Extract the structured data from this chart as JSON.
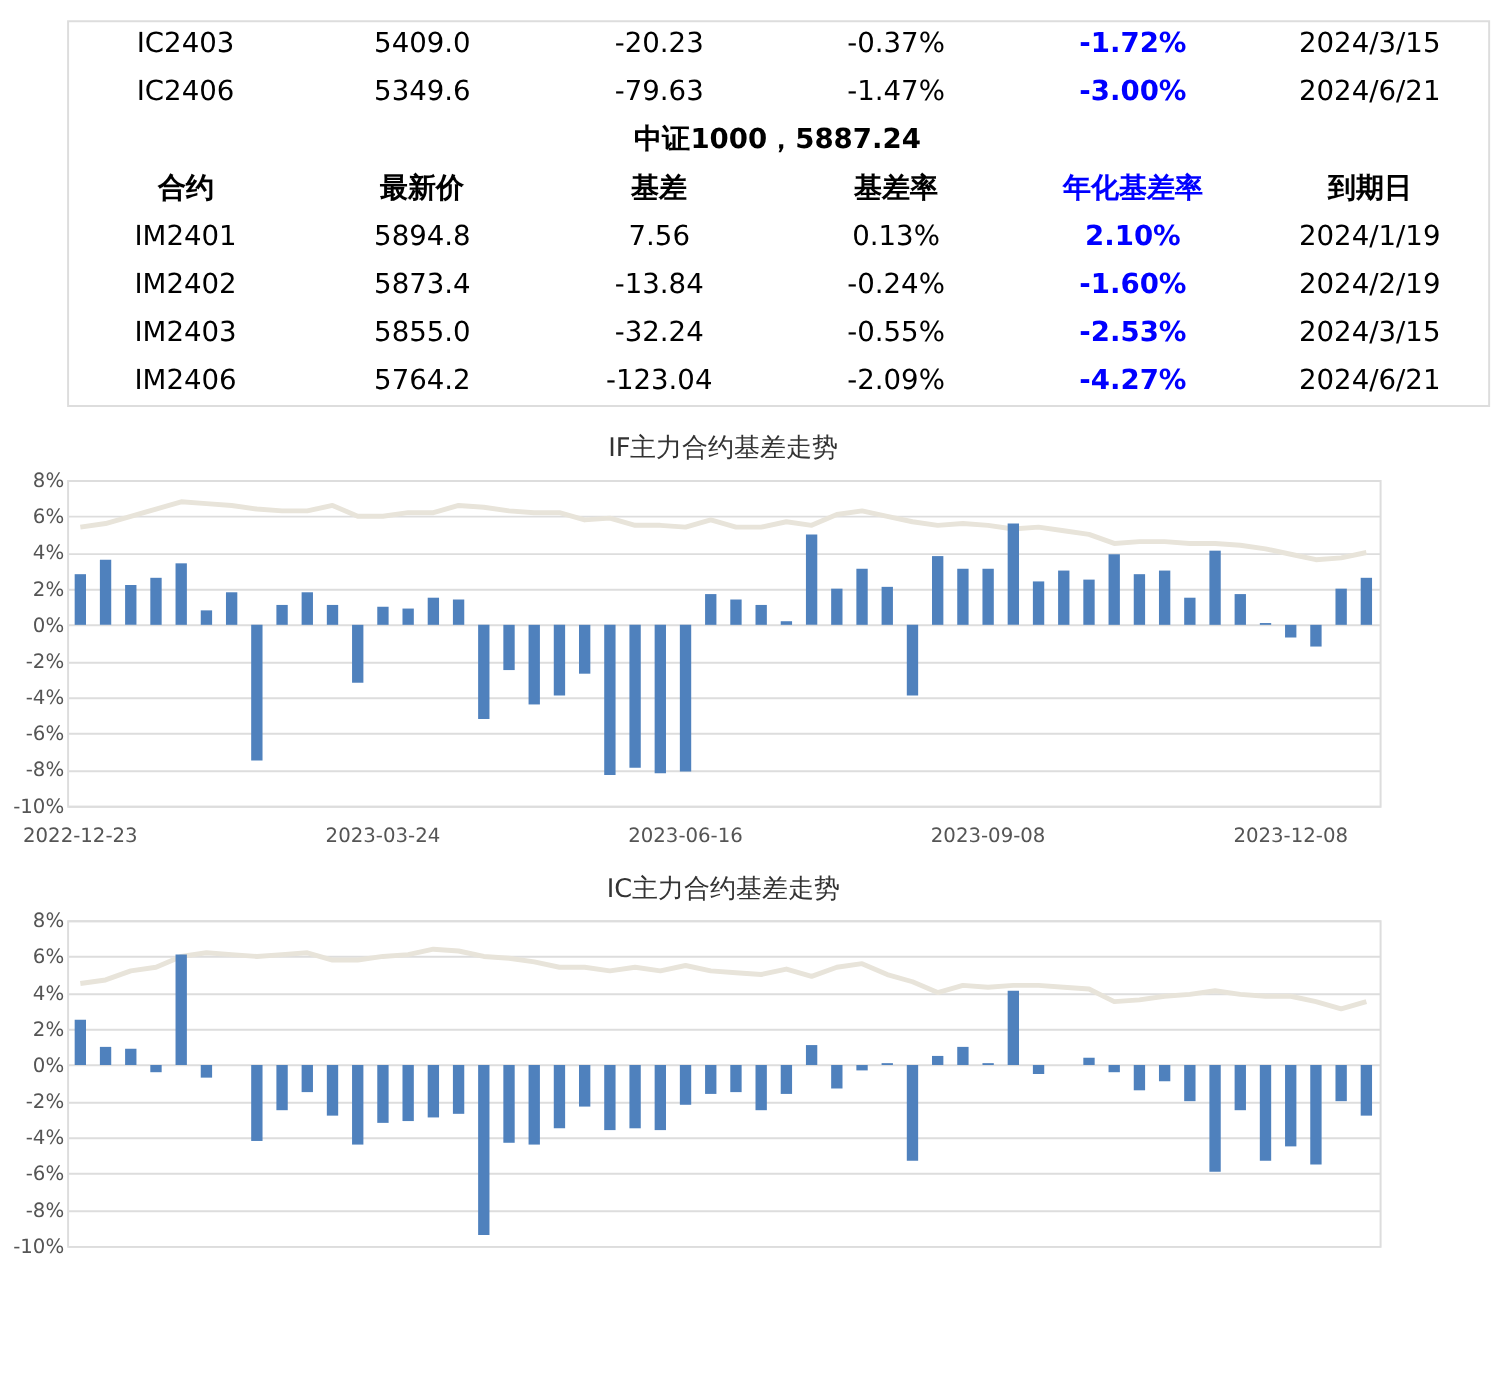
{
  "chart_data": [
    {
      "type": "other",
      "title": "中证1000，5887.24",
      "categories": [
        "合约",
        "最新价",
        "基差",
        "基差率",
        "年化基差率",
        "到期日"
      ],
      "colors": [
        "#000000",
        "#000000",
        "#000000",
        "#000000",
        "#0000ff",
        "#000000"
      ],
      "annotations": [
        "IC2403",
        "5409.0",
        "-20.23",
        "-0.37%",
        "-1.72%",
        "2024/3/15",
        "IC2406",
        "5349.6",
        "-79.63",
        "-1.47%",
        "-3.00%",
        "2024/6/21",
        "IM2401",
        "5894.8",
        "7.56",
        "0.13%",
        "2.10%",
        "2024/1/19",
        "IM2402",
        "5873.4",
        "-13.84",
        "-0.24%",
        "-1.60%",
        "2024/2/19",
        "IM2403",
        "5855.0",
        "-32.24",
        "-0.55%",
        "-2.53%",
        "2024/3/15",
        "IM2406",
        "5764.2",
        "-123.04",
        "-2.09%",
        "-4.27%",
        "2024/6/21"
      ]
    },
    {
      "type": "bar",
      "title": "IF主力合约基差走势",
      "grid": "y",
      "categories": [
        "2022-12-23",
        null,
        null,
        null,
        null,
        null,
        null,
        null,
        null,
        null,
        null,
        null,
        "2023-03-24",
        null,
        null,
        null,
        null,
        null,
        null,
        null,
        null,
        null,
        null,
        null,
        "2023-06-16",
        null,
        null,
        null,
        null,
        null,
        null,
        null,
        null,
        null,
        null,
        null,
        "2023-09-08",
        null,
        null,
        null,
        null,
        null,
        null,
        null,
        null,
        null,
        null,
        null,
        "2023-12-08",
        null,
        null,
        null
      ],
      "ylim": [
        -10,
        8
      ],
      "yticks": [
        {
          "value": -10,
          "label": "-10%"
        },
        {
          "value": -8,
          "label": "-8%"
        },
        {
          "value": -6,
          "label": "-6%"
        },
        {
          "value": -4,
          "label": "-4%"
        },
        {
          "value": -2,
          "label": "-2%"
        },
        {
          "value": 0,
          "label": "0%"
        },
        {
          "value": 2,
          "label": "2%"
        },
        {
          "value": 4,
          "label": "4%"
        },
        {
          "value": 6,
          "label": "6%"
        },
        {
          "value": 8,
          "label": "8%"
        }
      ],
      "series": [
        {
          "type": "line",
          "color": "#e8e4da",
          "values": [
            5.4,
            5.6,
            6.0,
            6.4,
            6.8,
            6.7,
            6.6,
            6.4,
            6.3,
            6.3,
            6.6,
            6.0,
            6.0,
            6.2,
            6.2,
            6.6,
            6.5,
            6.3,
            6.2,
            6.2,
            5.8,
            5.9,
            5.5,
            5.5,
            5.4,
            5.8,
            5.4,
            5.4,
            5.7,
            5.5,
            6.1,
            6.3,
            6.0,
            5.7,
            5.5,
            5.6,
            5.5,
            5.3,
            5.4,
            5.2,
            5.0,
            4.5,
            4.6,
            4.6,
            4.5,
            4.5,
            4.4,
            4.2,
            3.9,
            3.6,
            3.7,
            4.0
          ]
        },
        {
          "type": "bar",
          "color": "#4f81bd",
          "values": [
            2.8,
            3.6,
            2.2,
            2.6,
            3.4,
            0.8,
            1.8,
            -7.5,
            1.1,
            1.8,
            1.1,
            -3.2,
            1.0,
            0.9,
            1.5,
            1.4,
            -5.2,
            -2.5,
            -4.4,
            -3.9,
            -2.7,
            -8.3,
            -7.9,
            -8.2,
            -8.1,
            1.7,
            1.4,
            1.1,
            0.2,
            5.0,
            2.0,
            3.1,
            2.1,
            -3.9,
            3.8,
            3.1,
            3.1,
            5.6,
            2.4,
            3.0,
            2.5,
            3.9,
            2.8,
            3.0,
            1.5,
            4.1,
            1.7,
            0.1,
            -0.7,
            -1.2,
            2.0,
            2.6
          ]
        }
      ]
    },
    {
      "type": "bar",
      "title": "IC主力合约基差走势",
      "grid": "y",
      "tick_labels": "y",
      "categories": [
        null,
        null,
        null,
        null,
        null,
        null,
        null,
        null,
        null,
        null,
        null,
        null,
        null,
        null,
        null,
        null,
        null,
        null,
        null,
        null,
        null,
        null,
        null,
        null,
        null,
        null,
        null,
        null,
        null,
        null,
        null,
        null,
        null,
        null,
        null,
        null,
        null,
        null,
        null,
        null,
        null,
        null,
        null,
        null,
        null,
        null,
        null,
        null,
        null,
        null,
        null,
        null
      ],
      "ylim": [
        -10,
        8
      ],
      "yticks": [
        {
          "value": -10,
          "label": "-10%"
        },
        {
          "value": -8,
          "label": "-8%"
        },
        {
          "value": -6,
          "label": "-6%"
        },
        {
          "value": -4,
          "label": "-4%"
        },
        {
          "value": -2,
          "label": "-2%"
        },
        {
          "value": 0,
          "label": "0%"
        },
        {
          "value": 2,
          "label": "2%"
        },
        {
          "value": 4,
          "label": "4%"
        },
        {
          "value": 6,
          "label": "6%"
        },
        {
          "value": 8,
          "label": "8%"
        }
      ],
      "series": [
        {
          "type": "line",
          "color": "#e8e4da",
          "values": [
            4.5,
            4.7,
            5.2,
            5.4,
            6.0,
            6.2,
            6.1,
            6.0,
            6.1,
            6.2,
            5.8,
            5.8,
            6.0,
            6.1,
            6.4,
            6.3,
            6.0,
            5.9,
            5.7,
            5.4,
            5.4,
            5.2,
            5.4,
            5.2,
            5.5,
            5.2,
            5.1,
            5.0,
            5.3,
            4.9,
            5.4,
            5.6,
            5.0,
            4.6,
            4.0,
            4.4,
            4.3,
            4.4,
            4.4,
            4.3,
            4.2,
            3.5,
            3.6,
            3.8,
            3.9,
            4.1,
            3.9,
            3.8,
            3.8,
            3.5,
            3.1,
            3.5
          ]
        },
        {
          "type": "bar",
          "color": "#4f81bd",
          "values": [
            2.5,
            1.0,
            0.9,
            -0.4,
            6.1,
            -0.7,
            0,
            -4.2,
            -2.5,
            -1.5,
            -2.8,
            -4.4,
            -3.2,
            -3.1,
            -2.9,
            -2.7,
            -9.4,
            -4.3,
            -4.4,
            -3.5,
            -2.3,
            -3.6,
            -3.5,
            -3.6,
            -2.2,
            -1.6,
            -1.5,
            -2.5,
            -1.6,
            1.1,
            -1.3,
            -0.3,
            0.1,
            -5.3,
            0.5,
            1.0,
            0.1,
            4.1,
            -0.5,
            0,
            0.4,
            -0.4,
            -1.4,
            -0.9,
            -2.0,
            -5.9,
            -2.5,
            -5.3,
            -4.5,
            -5.5,
            -2.0,
            -2.8
          ]
        }
      ]
    }
  ]
}
